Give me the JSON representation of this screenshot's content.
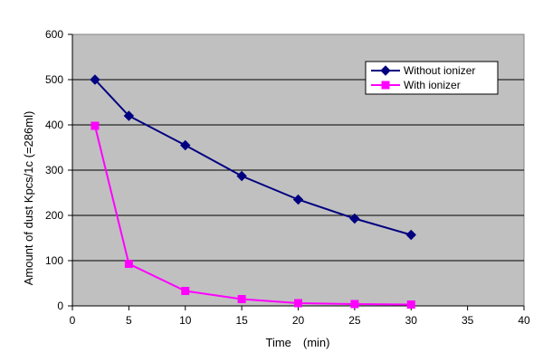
{
  "chart_data": {
    "type": "line",
    "xlabel": "Time　(min)",
    "ylabel": "Amount of dust Kpcs/1c (=286ml)",
    "xlim": [
      0,
      40
    ],
    "ylim": [
      0,
      600
    ],
    "xticks": [
      0,
      5,
      10,
      15,
      20,
      25,
      30,
      35,
      40
    ],
    "yticks": [
      0,
      100,
      200,
      300,
      400,
      500,
      600
    ],
    "grid": "horizontal",
    "legend_position": "top-right",
    "plot_background": "#c0c0c0",
    "series": [
      {
        "name": "Without ionizer",
        "color": "#000080",
        "marker": "diamond",
        "x": [
          2,
          5,
          10,
          15,
          20,
          25,
          30
        ],
        "y": [
          500,
          420,
          355,
          287,
          235,
          193,
          157
        ]
      },
      {
        "name": "With ionizer",
        "color": "#ff00ff",
        "marker": "square",
        "x": [
          2,
          5,
          10,
          15,
          20,
          25,
          30
        ],
        "y": [
          398,
          93,
          33,
          15,
          6,
          4,
          3
        ]
      }
    ]
  }
}
